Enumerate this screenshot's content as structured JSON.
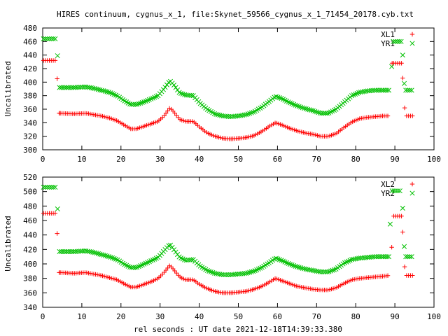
{
  "title": "HIRES continuum, cygnus_x_1, file:Skynet_59566_cygnus_x_1_71454_20178.cyb.txt",
  "colors": {
    "xl": "#ff0000",
    "yr": "#00c000",
    "axis": "#000000",
    "grid": "#000000"
  },
  "chart_data": [
    {
      "type": "scatter",
      "ylabel": "Uncalibrated",
      "xlabel": "",
      "xlim": [
        0,
        100
      ],
      "ylim": [
        300,
        480
      ],
      "xticks": [
        0,
        10,
        20,
        30,
        40,
        50,
        60,
        70,
        80,
        90,
        100
      ],
      "yticks": [
        300,
        320,
        340,
        360,
        380,
        400,
        420,
        440,
        460,
        480
      ],
      "grid": true,
      "legend_position": "top-right",
      "series": [
        {
          "name": "XL1",
          "marker": "plus",
          "points": [
            [
              0.2,
              432
            ],
            [
              0.7,
              432
            ],
            [
              1.2,
              432
            ],
            [
              1.7,
              432
            ],
            [
              2.2,
              432
            ],
            [
              2.7,
              432
            ],
            [
              3.2,
              432
            ],
            [
              3.7,
              405
            ],
            [
              4.2,
              354
            ],
            [
              92,
              406
            ],
            [
              92.5,
              362
            ],
            [
              93,
              350
            ],
            [
              93.5,
              350
            ],
            [
              94,
              350
            ],
            [
              94.5,
              350
            ],
            [
              89.3,
              428
            ],
            [
              89.7,
              428
            ],
            [
              90.2,
              428
            ],
            [
              90.7,
              428
            ],
            [
              91.2,
              428
            ],
            [
              91.7,
              428
            ]
          ],
          "profile": [
            [
              4.5,
              354
            ],
            [
              8,
              353
            ],
            [
              11,
              354
            ],
            [
              13,
              352
            ],
            [
              15,
              350
            ],
            [
              17,
              347
            ],
            [
              19,
              343
            ],
            [
              21,
              336
            ],
            [
              22.5,
              331
            ],
            [
              24,
              331
            ],
            [
              26,
              335
            ],
            [
              28,
              339
            ],
            [
              29.5,
              342
            ],
            [
              31,
              350
            ],
            [
              32.5,
              362
            ],
            [
              33.5,
              356
            ],
            [
              35,
              345
            ],
            [
              36.5,
              342
            ],
            [
              38.5,
              342
            ],
            [
              40,
              334
            ],
            [
              42,
              325
            ],
            [
              44,
              320
            ],
            [
              46,
              317
            ],
            [
              48,
              316
            ],
            [
              50,
              317
            ],
            [
              52,
              318
            ],
            [
              54,
              321
            ],
            [
              56,
              327
            ],
            [
              58,
              335
            ],
            [
              59.5,
              340
            ],
            [
              61,
              337
            ],
            [
              63,
              332
            ],
            [
              65,
              328
            ],
            [
              67,
              325
            ],
            [
              69,
              323
            ],
            [
              71,
              320
            ],
            [
              73,
              320
            ],
            [
              75,
              324
            ],
            [
              77,
              333
            ],
            [
              79,
              341
            ],
            [
              81,
              346
            ],
            [
              83,
              348
            ],
            [
              85,
              349
            ],
            [
              87,
              350
            ],
            [
              88.5,
              350
            ]
          ]
        },
        {
          "name": "YR1",
          "marker": "cross",
          "points": [
            [
              0.2,
              464
            ],
            [
              0.7,
              464
            ],
            [
              1.2,
              464
            ],
            [
              1.7,
              464
            ],
            [
              2.2,
              464
            ],
            [
              2.7,
              464
            ],
            [
              3.2,
              464
            ],
            [
              3.8,
              439
            ],
            [
              92,
              440
            ],
            [
              92.4,
              398
            ],
            [
              92.8,
              388
            ],
            [
              93.3,
              388
            ],
            [
              93.8,
              388
            ],
            [
              94.3,
              388
            ],
            [
              89.2,
              423
            ],
            [
              89.6,
              460
            ],
            [
              90.1,
              460
            ],
            [
              90.6,
              460
            ],
            [
              91.1,
              460
            ],
            [
              91.6,
              460
            ]
          ],
          "profile": [
            [
              4.3,
              392
            ],
            [
              8,
              392
            ],
            [
              11,
              393
            ],
            [
              13,
              391
            ],
            [
              15,
              388
            ],
            [
              17,
              385
            ],
            [
              19,
              380
            ],
            [
              21,
              372
            ],
            [
              22.5,
              367
            ],
            [
              24,
              367
            ],
            [
              26,
              371
            ],
            [
              28,
              376
            ],
            [
              29.5,
              380
            ],
            [
              31,
              390
            ],
            [
              32.5,
              402
            ],
            [
              33.5,
              396
            ],
            [
              35,
              384
            ],
            [
              36.5,
              381
            ],
            [
              38.5,
              380
            ],
            [
              40,
              370
            ],
            [
              42,
              360
            ],
            [
              44,
              353
            ],
            [
              46,
              350
            ],
            [
              48,
              349
            ],
            [
              50,
              350
            ],
            [
              52,
              352
            ],
            [
              54,
              356
            ],
            [
              56,
              363
            ],
            [
              58,
              372
            ],
            [
              59.5,
              379
            ],
            [
              61,
              376
            ],
            [
              63,
              370
            ],
            [
              65,
              365
            ],
            [
              67,
              361
            ],
            [
              69,
              358
            ],
            [
              71,
              354
            ],
            [
              73,
              354
            ],
            [
              75,
              360
            ],
            [
              77,
              370
            ],
            [
              79,
              380
            ],
            [
              81,
              385
            ],
            [
              83,
              387
            ],
            [
              85,
              388
            ],
            [
              87,
              388
            ],
            [
              88.5,
              388
            ]
          ]
        }
      ]
    },
    {
      "type": "scatter",
      "ylabel": "Uncalibrated",
      "xlabel": "rel seconds : UT date 2021-12-18T14:39:33.380",
      "xlim": [
        0,
        100
      ],
      "ylim": [
        340,
        520
      ],
      "xticks": [
        0,
        10,
        20,
        30,
        40,
        50,
        60,
        70,
        80,
        90,
        100
      ],
      "yticks": [
        340,
        360,
        380,
        400,
        420,
        440,
        460,
        480,
        500,
        520
      ],
      "grid": true,
      "legend_position": "top-right",
      "series": [
        {
          "name": "XL2",
          "marker": "plus",
          "points": [
            [
              0.2,
              470
            ],
            [
              0.7,
              470
            ],
            [
              1.2,
              470
            ],
            [
              1.7,
              470
            ],
            [
              2.2,
              470
            ],
            [
              2.7,
              470
            ],
            [
              3.2,
              470
            ],
            [
              3.7,
              442
            ],
            [
              4.2,
              388
            ],
            [
              92,
              444
            ],
            [
              92.5,
              396
            ],
            [
              93,
              384
            ],
            [
              93.5,
              384
            ],
            [
              94,
              384
            ],
            [
              94.5,
              384
            ],
            [
              89.2,
              423
            ],
            [
              89.7,
              466
            ],
            [
              90.2,
              466
            ],
            [
              90.7,
              466
            ],
            [
              91.2,
              466
            ],
            [
              91.7,
              466
            ]
          ],
          "profile": [
            [
              4.5,
              388
            ],
            [
              8,
              387
            ],
            [
              11,
              388
            ],
            [
              13,
              386
            ],
            [
              15,
              384
            ],
            [
              17,
              381
            ],
            [
              19,
              378
            ],
            [
              21,
              372
            ],
            [
              22.5,
              368
            ],
            [
              24,
              368
            ],
            [
              26,
              372
            ],
            [
              28,
              376
            ],
            [
              29.5,
              380
            ],
            [
              31,
              388
            ],
            [
              32.5,
              398
            ],
            [
              33.5,
              392
            ],
            [
              35,
              382
            ],
            [
              36.5,
              378
            ],
            [
              38.5,
              378
            ],
            [
              40,
              372
            ],
            [
              42,
              366
            ],
            [
              44,
              362
            ],
            [
              46,
              360
            ],
            [
              48,
              360
            ],
            [
              50,
              361
            ],
            [
              52,
              362
            ],
            [
              54,
              365
            ],
            [
              56,
              369
            ],
            [
              58,
              375
            ],
            [
              59.5,
              380
            ],
            [
              61,
              377
            ],
            [
              63,
              373
            ],
            [
              65,
              369
            ],
            [
              67,
              367
            ],
            [
              69,
              365
            ],
            [
              71,
              364
            ],
            [
              73,
              364
            ],
            [
              75,
              367
            ],
            [
              77,
              373
            ],
            [
              79,
              378
            ],
            [
              81,
              380
            ],
            [
              83,
              381
            ],
            [
              85,
              382
            ],
            [
              87,
              383
            ],
            [
              88.5,
              384
            ]
          ]
        },
        {
          "name": "YR2",
          "marker": "cross",
          "points": [
            [
              0.2,
              506
            ],
            [
              0.7,
              506
            ],
            [
              1.2,
              506
            ],
            [
              1.7,
              506
            ],
            [
              2.2,
              506
            ],
            [
              2.7,
              506
            ],
            [
              3.2,
              506
            ],
            [
              3.8,
              476
            ],
            [
              92,
              477
            ],
            [
              92.4,
              424
            ],
            [
              92.8,
              410
            ],
            [
              93.3,
              410
            ],
            [
              93.8,
              410
            ],
            [
              94.3,
              410
            ],
            [
              88.8,
              455
            ],
            [
              89.3,
              501
            ],
            [
              89.8,
              501
            ],
            [
              90.3,
              501
            ],
            [
              90.8,
              501
            ],
            [
              91.3,
              501
            ]
          ],
          "profile": [
            [
              4.3,
              417
            ],
            [
              8,
              417
            ],
            [
              11,
              418
            ],
            [
              13,
              416
            ],
            [
              15,
              413
            ],
            [
              17,
              410
            ],
            [
              19,
              406
            ],
            [
              21,
              399
            ],
            [
              22.5,
              395
            ],
            [
              24,
              395
            ],
            [
              26,
              400
            ],
            [
              28,
              405
            ],
            [
              29.5,
              409
            ],
            [
              31,
              418
            ],
            [
              32.5,
              427
            ],
            [
              33.5,
              420
            ],
            [
              35,
              409
            ],
            [
              36.5,
              405
            ],
            [
              38.5,
              406
            ],
            [
              40,
              398
            ],
            [
              42,
              391
            ],
            [
              44,
              387
            ],
            [
              46,
              385
            ],
            [
              48,
              385
            ],
            [
              50,
              386
            ],
            [
              52,
              387
            ],
            [
              54,
              390
            ],
            [
              56,
              395
            ],
            [
              58,
              402
            ],
            [
              59.5,
              408
            ],
            [
              61,
              405
            ],
            [
              63,
              400
            ],
            [
              65,
              396
            ],
            [
              67,
              393
            ],
            [
              69,
              391
            ],
            [
              71,
              389
            ],
            [
              73,
              389
            ],
            [
              75,
              393
            ],
            [
              77,
              401
            ],
            [
              79,
              406
            ],
            [
              81,
              408
            ],
            [
              83,
              409
            ],
            [
              85,
              410
            ],
            [
              87,
              410
            ],
            [
              88.5,
              410
            ]
          ]
        }
      ]
    }
  ]
}
